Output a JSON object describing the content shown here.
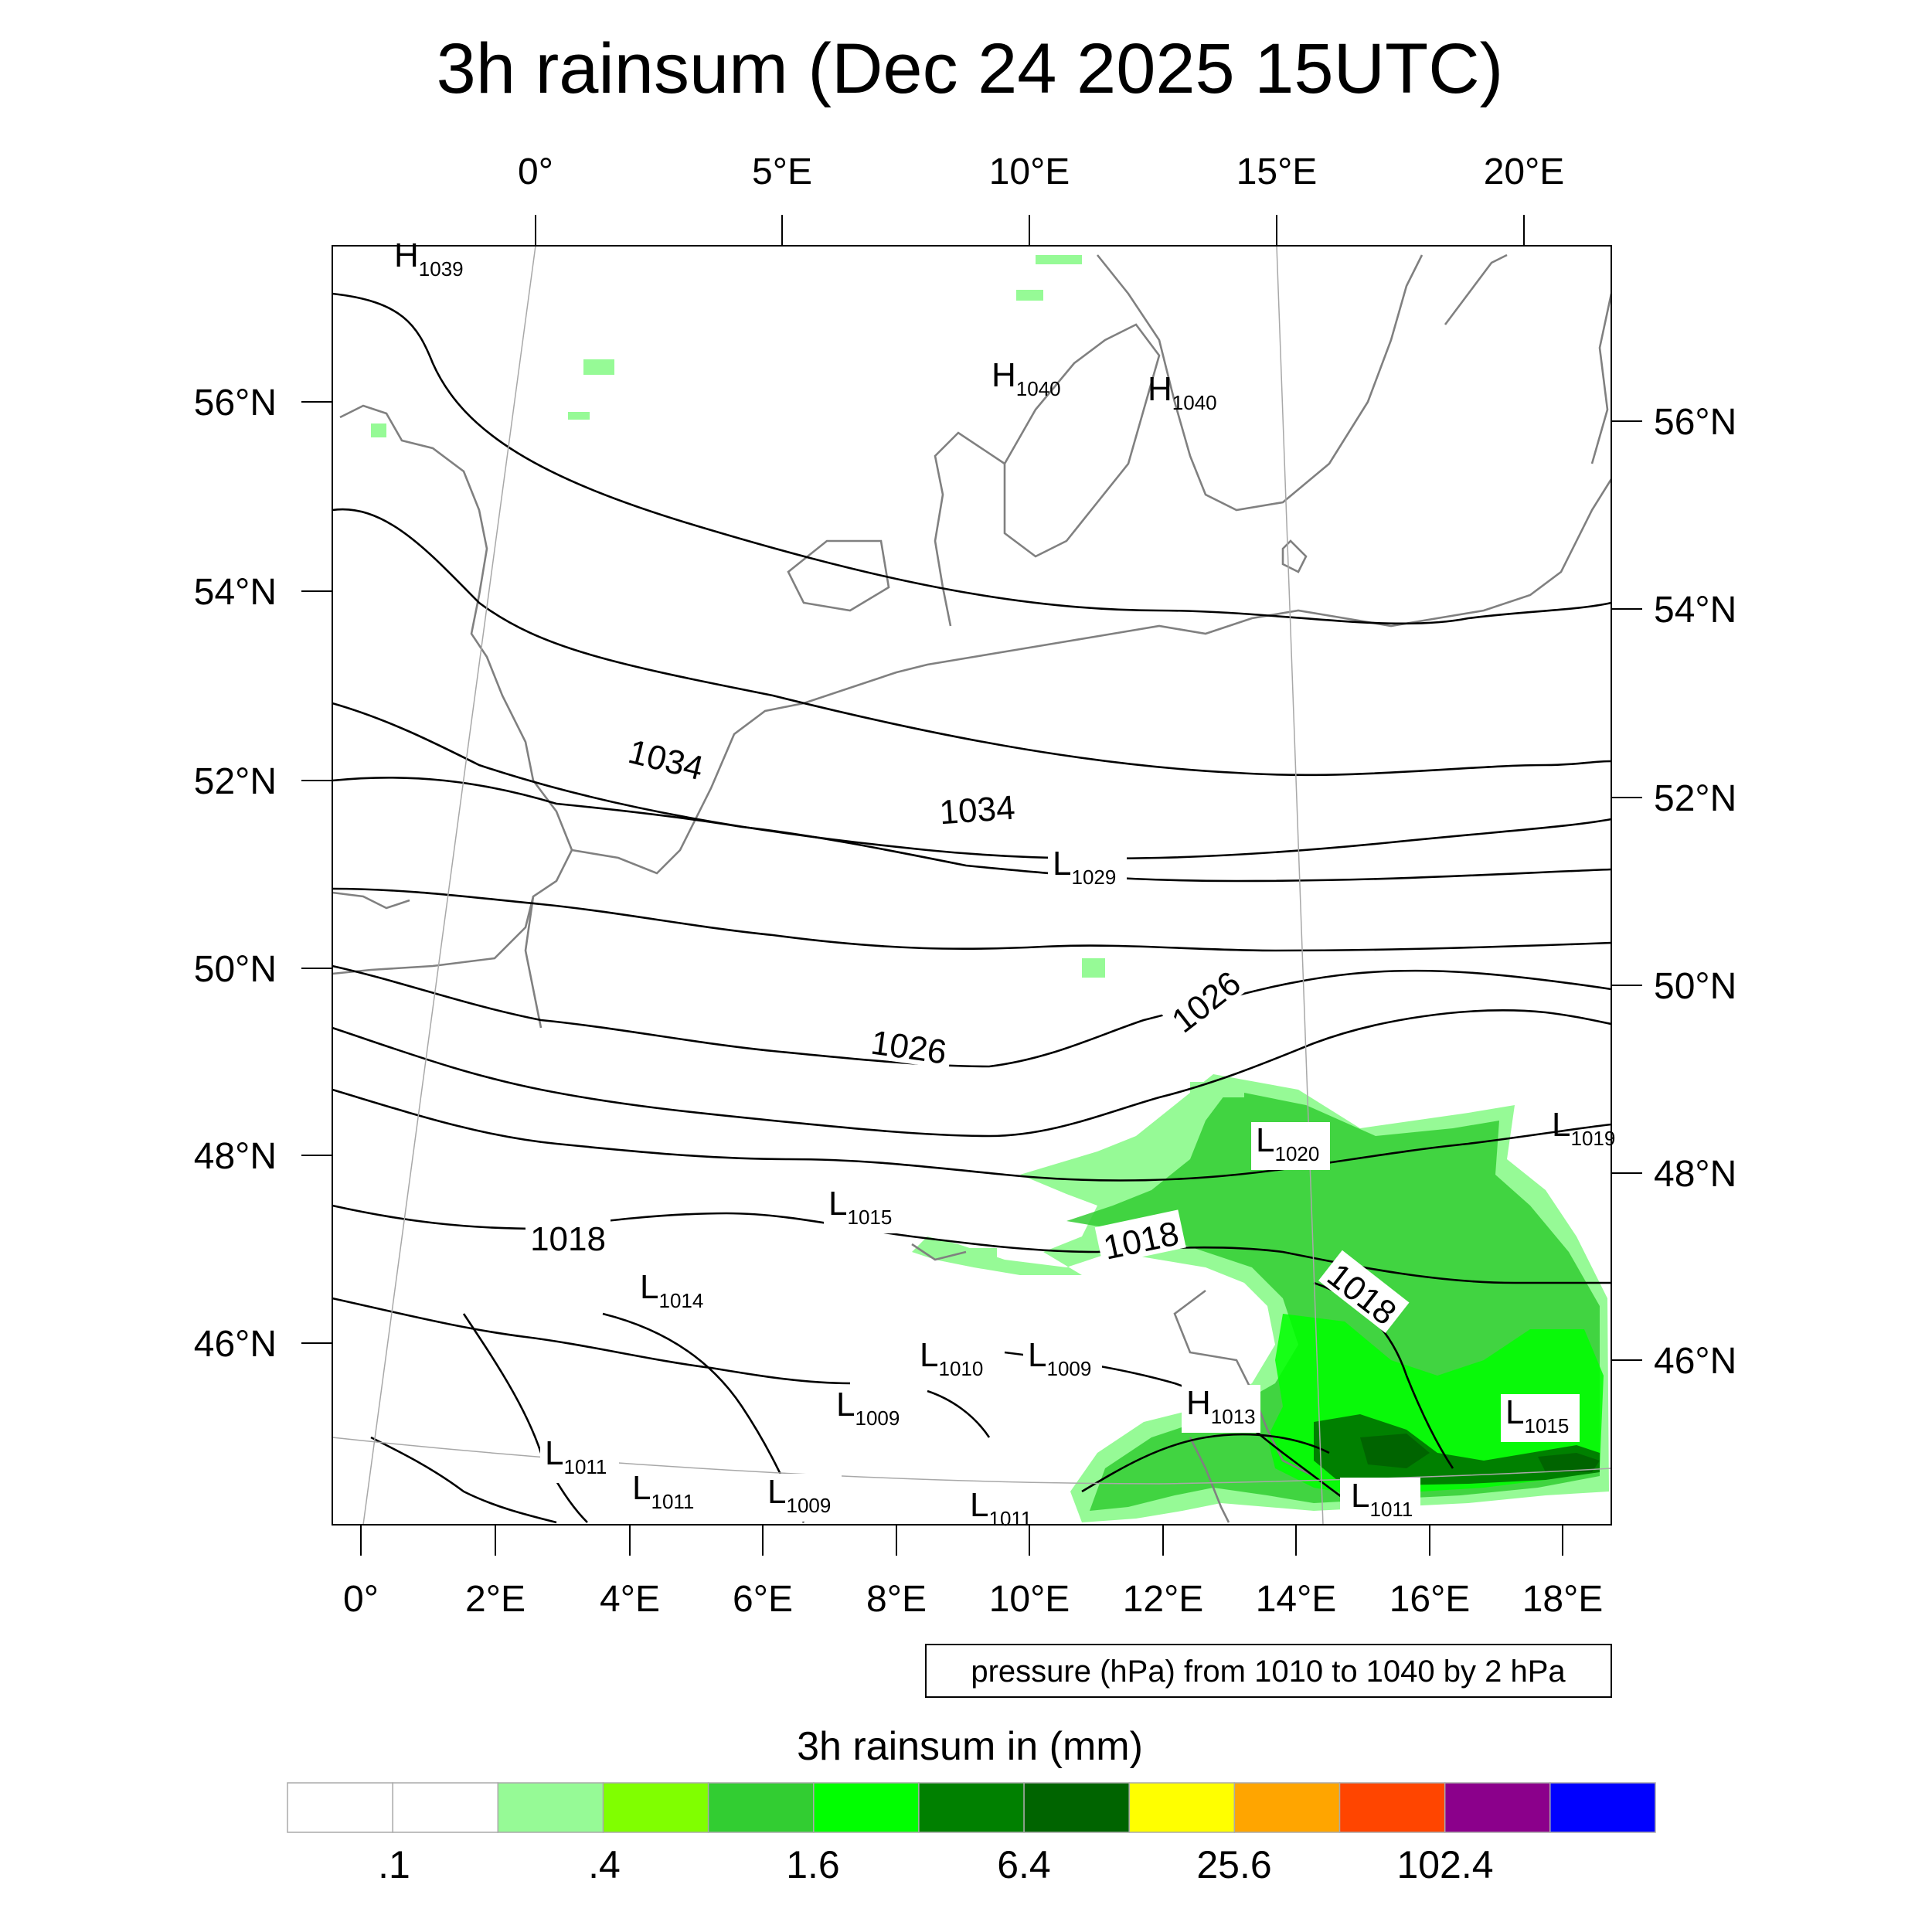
{
  "title": "3h rainsum (Dec 24 2025 15UTC)",
  "top_lon_labels": [
    "0°",
    "5°E",
    "10°E",
    "15°E",
    "20°E"
  ],
  "bottom_lon_labels": [
    "0°",
    "2°E",
    "4°E",
    "6°E",
    "8°E",
    "10°E",
    "12°E",
    "14°E",
    "16°E",
    "18°E"
  ],
  "left_lat_labels": [
    "56°N",
    "54°N",
    "52°N",
    "50°N",
    "48°N",
    "46°N"
  ],
  "right_lat_labels": [
    "56°N",
    "54°N",
    "52°N",
    "50°N",
    "48°N",
    "46°N"
  ],
  "pressure_labels": [
    {
      "text": "1034"
    },
    {
      "text": "1034"
    },
    {
      "text": "1026"
    },
    {
      "text": "1026"
    },
    {
      "text": "1018"
    },
    {
      "text": "1018"
    },
    {
      "text": "1018"
    }
  ],
  "centers": [
    {
      "letter": "H",
      "value": "1039"
    },
    {
      "letter": "H",
      "value": "1040"
    },
    {
      "letter": "H",
      "value": "1040"
    },
    {
      "letter": "L",
      "value": "1029"
    },
    {
      "letter": "L",
      "value": "1020"
    },
    {
      "letter": "L",
      "value": "1019"
    },
    {
      "letter": "L",
      "value": "1015"
    },
    {
      "letter": "L",
      "value": "1014"
    },
    {
      "letter": "L",
      "value": "1010"
    },
    {
      "letter": "L",
      "value": "1009"
    },
    {
      "letter": "L",
      "value": "1009"
    },
    {
      "letter": "H",
      "value": "1013"
    },
    {
      "letter": "L",
      "value": "1015"
    },
    {
      "letter": "L",
      "value": "1011"
    },
    {
      "letter": "L",
      "value": "1011"
    },
    {
      "letter": "L",
      "value": "1009"
    },
    {
      "letter": "L",
      "value": "1011"
    },
    {
      "letter": "L",
      "value": "1011"
    }
  ],
  "info_box": "pressure (hPa) from 1010 to 1040 by 2 hPa",
  "colorbar": {
    "title": "3h rainsum in (mm)",
    "colors": [
      "#ffffff",
      "#ffffff",
      "#96fa96",
      "#80ff00",
      "#32cd32",
      "#00ff00",
      "#008000",
      "#006400",
      "#ffff00",
      "#ffa500",
      "#ff4500",
      "#8b008b",
      "#0000ff"
    ],
    "labels": [
      ".1",
      ".4",
      "1.6",
      "6.4",
      "25.6",
      "102.4"
    ]
  }
}
